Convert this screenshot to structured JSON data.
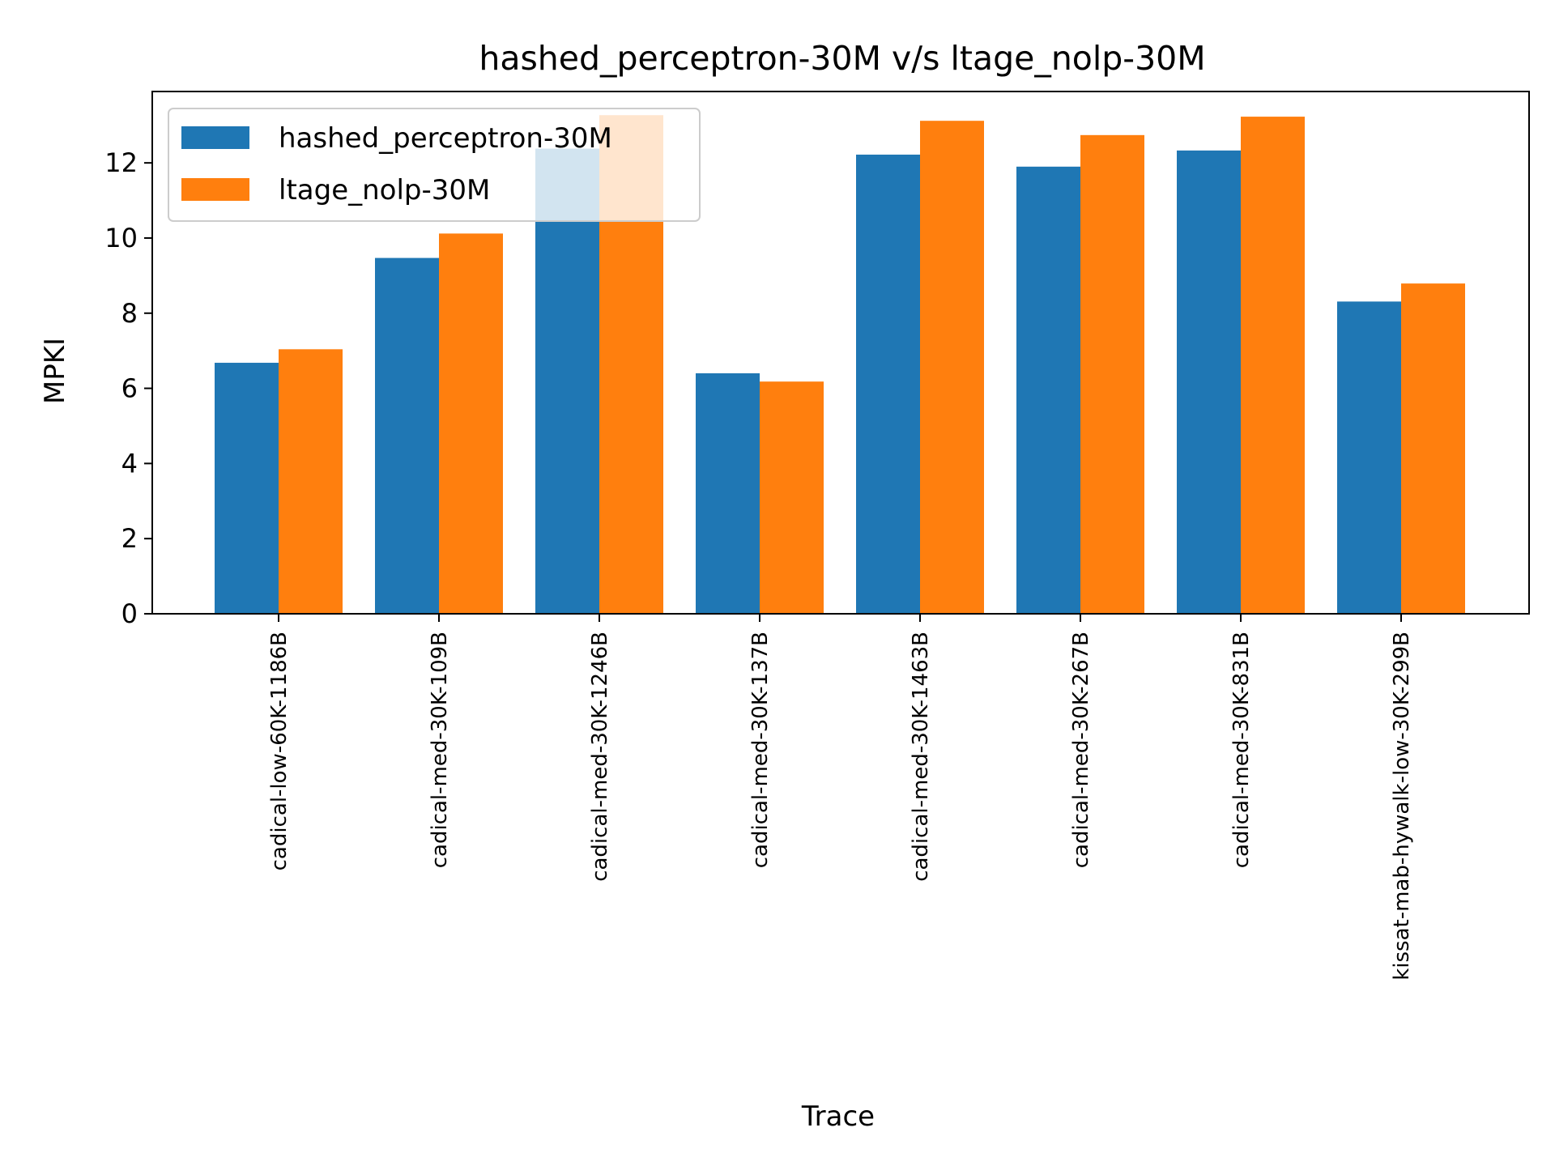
{
  "chart_data": {
    "type": "bar",
    "title": "hashed_perceptron-30M v/s ltage_nolp-30M",
    "xlabel": "Trace",
    "ylabel": "MPKI",
    "ylim": [
      0,
      13.9
    ],
    "yticks": [
      0,
      2,
      4,
      6,
      8,
      10,
      12
    ],
    "grid": false,
    "legend_position": "upper-left",
    "categories": [
      "cadical-low-60K-1186B",
      "cadical-med-30K-109B",
      "cadical-med-30K-1246B",
      "cadical-med-30K-137B",
      "cadical-med-30K-1463B",
      "cadical-med-30K-267B",
      "cadical-med-30K-831B",
      "kissat-mab-hywalk-low-30K-299B"
    ],
    "series": [
      {
        "name": "hashed_perceptron-30M",
        "color": "#1f77b4",
        "values": [
          6.68,
          9.47,
          12.38,
          6.4,
          12.22,
          11.9,
          12.33,
          8.31
        ]
      },
      {
        "name": "ltage_nolp-30M",
        "color": "#ff7f0e",
        "values": [
          7.04,
          10.12,
          13.27,
          6.18,
          13.12,
          12.74,
          13.23,
          8.79
        ]
      }
    ]
  }
}
